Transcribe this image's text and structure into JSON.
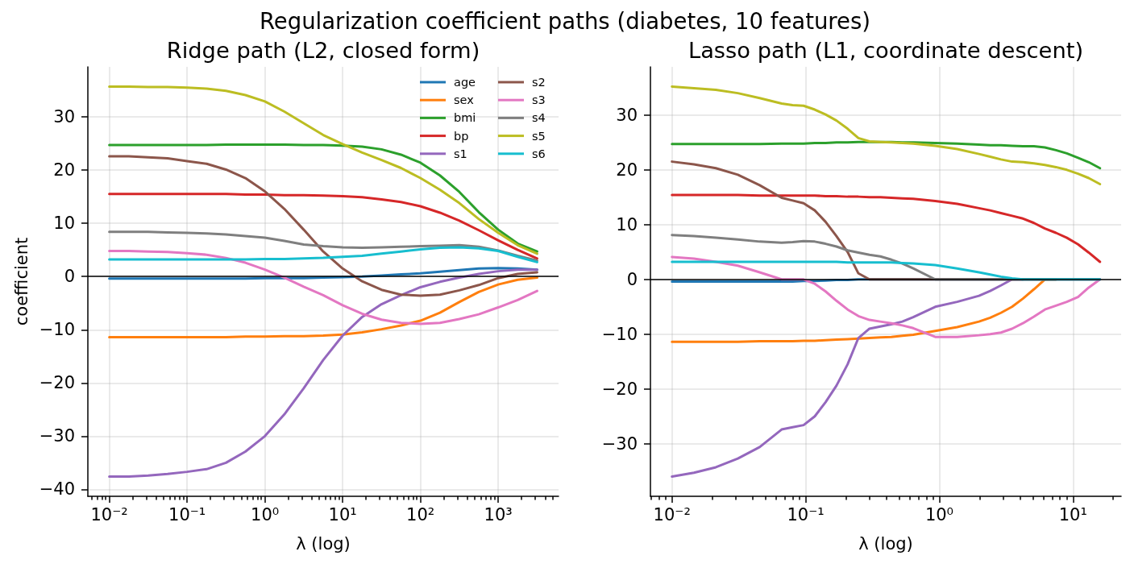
{
  "chart_data": [
    {
      "type": "line",
      "title": "Ridge path (L2, closed form)",
      "xlabel": "λ (log)",
      "ylabel": "coefficient",
      "annotations": [
        "Regularization coefficient paths (diabetes, 10 features)"
      ],
      "log": "x",
      "grid": true,
      "legend": "top right",
      "xlim": [
        0.0053,
        5960
      ],
      "ylim": [
        -41.3,
        39.4
      ],
      "xticks": [
        {
          "value": 0.006,
          "label": null
        },
        {
          "value": 0.007,
          "label": null
        },
        {
          "value": 0.008,
          "label": null
        },
        {
          "value": 0.009,
          "label": null
        },
        {
          "value": 0.01,
          "label": "10⁻²"
        },
        {
          "value": 0.02,
          "label": null
        },
        {
          "value": 0.03,
          "label": null
        },
        {
          "value": 0.04,
          "label": null
        },
        {
          "value": 0.05,
          "label": null
        },
        {
          "value": 0.06,
          "label": null
        },
        {
          "value": 0.07,
          "label": null
        },
        {
          "value": 0.08,
          "label": null
        },
        {
          "value": 0.09,
          "label": null
        },
        {
          "value": 0.1,
          "label": "10⁻¹"
        },
        {
          "value": 0.2,
          "label": null
        },
        {
          "value": 0.3,
          "label": null
        },
        {
          "value": 0.4,
          "label": null
        },
        {
          "value": 0.5,
          "label": null
        },
        {
          "value": 0.6,
          "label": null
        },
        {
          "value": 0.7,
          "label": null
        },
        {
          "value": 0.8,
          "label": null
        },
        {
          "value": 0.9,
          "label": null
        },
        {
          "value": 1,
          "label": "10⁰"
        },
        {
          "value": 2,
          "label": null
        },
        {
          "value": 3,
          "label": null
        },
        {
          "value": 4,
          "label": null
        },
        {
          "value": 5,
          "label": null
        },
        {
          "value": 6,
          "label": null
        },
        {
          "value": 7,
          "label": null
        },
        {
          "value": 8,
          "label": null
        },
        {
          "value": 9,
          "label": null
        },
        {
          "value": 10,
          "label": "10¹"
        },
        {
          "value": 20,
          "label": null
        },
        {
          "value": 30,
          "label": null
        },
        {
          "value": 40,
          "label": null
        },
        {
          "value": 50,
          "label": null
        },
        {
          "value": 60,
          "label": null
        },
        {
          "value": 70,
          "label": null
        },
        {
          "value": 80,
          "label": null
        },
        {
          "value": 90,
          "label": null
        },
        {
          "value": 100,
          "label": "10²"
        },
        {
          "value": 200,
          "label": null
        },
        {
          "value": 300,
          "label": null
        },
        {
          "value": 400,
          "label": null
        },
        {
          "value": 500,
          "label": null
        },
        {
          "value": 600,
          "label": null
        },
        {
          "value": 700,
          "label": null
        },
        {
          "value": 800,
          "label": null
        },
        {
          "value": 900,
          "label": null
        },
        {
          "value": 1000,
          "label": "10³"
        },
        {
          "value": 2000,
          "label": null
        },
        {
          "value": 3000,
          "label": null
        },
        {
          "value": 4000,
          "label": null
        },
        {
          "value": 5000,
          "label": null
        }
      ],
      "yticks": [
        -40,
        -30,
        -20,
        -10,
        0,
        10,
        20,
        30
      ],
      "ref_lines": [
        {
          "axis": "y",
          "value": 0,
          "color": "#000000"
        }
      ],
      "x": [
        0.01,
        0.0178,
        0.0316,
        0.0562,
        0.1,
        0.178,
        0.316,
        0.562,
        1,
        1.78,
        3.16,
        5.62,
        10,
        17.8,
        31.6,
        56.2,
        100,
        178,
        316,
        562,
        1000,
        1778,
        3162
      ],
      "series": [
        {
          "name": "age",
          "color": "#1f77b4",
          "values": [
            -0.4,
            -0.4,
            -0.4,
            -0.4,
            -0.4,
            -0.4,
            -0.4,
            -0.4,
            -0.3,
            -0.3,
            -0.3,
            -0.2,
            -0.1,
            0.0,
            0.2,
            0.4,
            0.6,
            0.9,
            1.2,
            1.5,
            1.6,
            1.5,
            1.3
          ]
        },
        {
          "name": "sex",
          "color": "#ff7f0e",
          "values": [
            -11.4,
            -11.4,
            -11.4,
            -11.4,
            -11.4,
            -11.4,
            -11.4,
            -11.3,
            -11.3,
            -11.2,
            -11.2,
            -11.1,
            -10.9,
            -10.5,
            -9.9,
            -9.2,
            -8.3,
            -6.8,
            -4.8,
            -2.9,
            -1.5,
            -0.6,
            -0.2
          ]
        },
        {
          "name": "bmi",
          "color": "#2ca02c",
          "values": [
            24.7,
            24.7,
            24.7,
            24.7,
            24.7,
            24.7,
            24.8,
            24.8,
            24.8,
            24.8,
            24.7,
            24.7,
            24.6,
            24.4,
            23.9,
            22.9,
            21.4,
            19.0,
            15.9,
            12.1,
            8.8,
            6.2,
            4.7
          ]
        },
        {
          "name": "bp",
          "color": "#d62728",
          "values": [
            15.5,
            15.5,
            15.5,
            15.5,
            15.5,
            15.5,
            15.5,
            15.4,
            15.4,
            15.3,
            15.3,
            15.2,
            15.1,
            14.9,
            14.5,
            14.0,
            13.2,
            12.0,
            10.5,
            8.7,
            6.8,
            5.0,
            3.4
          ]
        },
        {
          "name": "s1",
          "color": "#9467bd",
          "values": [
            -37.6,
            -37.6,
            -37.4,
            -37.1,
            -36.7,
            -36.2,
            -35.0,
            -32.9,
            -30.0,
            -25.9,
            -21.0,
            -15.7,
            -11.1,
            -7.6,
            -5.2,
            -3.5,
            -2.0,
            -1.0,
            -0.2,
            0.5,
            1.0,
            1.3,
            1.3
          ]
        },
        {
          "name": "s2",
          "color": "#8c564b",
          "values": [
            22.6,
            22.6,
            22.4,
            22.2,
            21.7,
            21.2,
            20.1,
            18.5,
            16.0,
            12.7,
            8.8,
            4.7,
            1.5,
            -0.9,
            -2.5,
            -3.4,
            -3.6,
            -3.4,
            -2.6,
            -1.6,
            -0.3,
            0.5,
            0.8
          ]
        },
        {
          "name": "s3",
          "color": "#e377c2",
          "values": [
            4.8,
            4.8,
            4.7,
            4.6,
            4.4,
            4.1,
            3.5,
            2.6,
            1.3,
            -0.2,
            -1.9,
            -3.5,
            -5.4,
            -7.0,
            -8.1,
            -8.7,
            -8.9,
            -8.7,
            -8.0,
            -7.1,
            -5.8,
            -4.4,
            -2.7
          ]
        },
        {
          "name": "s4",
          "color": "#7f7f7f",
          "values": [
            8.4,
            8.4,
            8.4,
            8.3,
            8.2,
            8.1,
            7.9,
            7.6,
            7.3,
            6.7,
            6.0,
            5.7,
            5.5,
            5.4,
            5.5,
            5.6,
            5.7,
            5.8,
            5.9,
            5.6,
            4.9,
            3.9,
            3.0
          ]
        },
        {
          "name": "s5",
          "color": "#bcbd22",
          "values": [
            35.7,
            35.7,
            35.6,
            35.6,
            35.5,
            35.3,
            34.9,
            34.1,
            32.9,
            31.0,
            28.8,
            26.6,
            24.9,
            23.3,
            21.9,
            20.4,
            18.5,
            16.3,
            13.8,
            10.8,
            8.2,
            5.9,
            4.3
          ]
        },
        {
          "name": "s6",
          "color": "#17becf",
          "values": [
            3.2,
            3.2,
            3.2,
            3.2,
            3.2,
            3.2,
            3.2,
            3.2,
            3.3,
            3.3,
            3.4,
            3.5,
            3.7,
            3.9,
            4.3,
            4.7,
            5.1,
            5.4,
            5.5,
            5.3,
            4.8,
            3.7,
            2.7
          ]
        }
      ]
    },
    {
      "type": "line",
      "title": "Lasso path (L1, coordinate descent)",
      "xlabel": "λ (log)",
      "log": "x",
      "grid": true,
      "xlim": [
        0.0069,
        22.9
      ],
      "ylim": [
        -39.6,
        38.8
      ],
      "xticks": [
        {
          "value": 0.007,
          "label": null
        },
        {
          "value": 0.008,
          "label": null
        },
        {
          "value": 0.009,
          "label": null
        },
        {
          "value": 0.01,
          "label": "10⁻²"
        },
        {
          "value": 0.02,
          "label": null
        },
        {
          "value": 0.03,
          "label": null
        },
        {
          "value": 0.04,
          "label": null
        },
        {
          "value": 0.05,
          "label": null
        },
        {
          "value": 0.06,
          "label": null
        },
        {
          "value": 0.07,
          "label": null
        },
        {
          "value": 0.08,
          "label": null
        },
        {
          "value": 0.09,
          "label": null
        },
        {
          "value": 0.1,
          "label": "10⁻¹"
        },
        {
          "value": 0.2,
          "label": null
        },
        {
          "value": 0.3,
          "label": null
        },
        {
          "value": 0.4,
          "label": null
        },
        {
          "value": 0.5,
          "label": null
        },
        {
          "value": 0.6,
          "label": null
        },
        {
          "value": 0.7,
          "label": null
        },
        {
          "value": 0.8,
          "label": null
        },
        {
          "value": 0.9,
          "label": null
        },
        {
          "value": 1,
          "label": "10⁰"
        },
        {
          "value": 2,
          "label": null
        },
        {
          "value": 3,
          "label": null
        },
        {
          "value": 4,
          "label": null
        },
        {
          "value": 5,
          "label": null
        },
        {
          "value": 6,
          "label": null
        },
        {
          "value": 7,
          "label": null
        },
        {
          "value": 8,
          "label": null
        },
        {
          "value": 9,
          "label": null
        },
        {
          "value": 10,
          "label": "10¹"
        },
        {
          "value": 20,
          "label": null
        }
      ],
      "yticks": [
        -30,
        -20,
        -10,
        0,
        10,
        20,
        30
      ],
      "ref_lines": [
        {
          "axis": "y",
          "value": 0,
          "color": "#000000"
        }
      ],
      "x": [
        0.01,
        0.0146,
        0.0213,
        0.0311,
        0.0453,
        0.0661,
        0.0799,
        0.0965,
        0.117,
        0.141,
        0.17,
        0.206,
        0.248,
        0.3,
        0.362,
        0.438,
        0.529,
        0.638,
        0.932,
        1.36,
        1.98,
        2.4,
        2.89,
        3.5,
        4.22,
        5.1,
        6.16,
        7.45,
        8.99,
        10.9,
        13.1,
        15.9
      ],
      "series": [
        {
          "color": "#1f77b4",
          "values": [
            -0.4,
            -0.4,
            -0.4,
            -0.4,
            -0.4,
            -0.4,
            -0.4,
            -0.3,
            -0.3,
            -0.2,
            -0.1,
            -0.1,
            0,
            0,
            0,
            0,
            0,
            0,
            0,
            0,
            0,
            0,
            0,
            0,
            0,
            null,
            null,
            null,
            null,
            null,
            null,
            null
          ]
        },
        {
          "color": "#ff7f0e",
          "values": [
            -11.4,
            -11.4,
            -11.4,
            -11.4,
            -11.3,
            -11.3,
            -11.3,
            -11.2,
            -11.2,
            -11.1,
            -11.0,
            -10.9,
            -10.8,
            -10.7,
            -10.6,
            -10.5,
            -10.3,
            -10.1,
            -9.4,
            -8.7,
            -7.7,
            -7.0,
            -6.1,
            -5.0,
            -3.5,
            -1.8,
            0,
            0,
            null,
            null,
            null,
            null
          ]
        },
        {
          "color": "#2ca02c",
          "values": [
            24.7,
            24.7,
            24.7,
            24.7,
            24.7,
            24.8,
            24.8,
            24.8,
            24.9,
            24.9,
            25.0,
            25.0,
            25.1,
            25.1,
            25.1,
            25.1,
            25.0,
            25.0,
            24.9,
            24.8,
            24.6,
            24.5,
            24.5,
            24.4,
            24.3,
            24.3,
            24.1,
            23.6,
            23.0,
            22.2,
            21.4,
            20.3
          ]
        },
        {
          "color": "#d62728",
          "values": [
            15.4,
            15.4,
            15.4,
            15.4,
            15.3,
            15.3,
            15.3,
            15.3,
            15.3,
            15.2,
            15.2,
            15.1,
            15.1,
            15.0,
            15.0,
            14.9,
            14.8,
            14.7,
            14.3,
            13.8,
            13.0,
            12.6,
            12.1,
            11.6,
            11.1,
            10.3,
            9.3,
            8.5,
            7.6,
            6.4,
            4.9,
            3.2
          ]
        },
        {
          "color": "#9467bd",
          "values": [
            -36.0,
            -35.3,
            -34.3,
            -32.7,
            -30.6,
            -27.4,
            -27.0,
            -26.6,
            -25.0,
            -22.4,
            -19.4,
            -15.5,
            -10.7,
            -9.0,
            -8.6,
            -8.2,
            -7.7,
            -6.9,
            -5.0,
            -4.1,
            -3.0,
            -2.1,
            -1.1,
            0,
            0,
            0,
            0,
            0,
            0,
            0,
            0,
            0
          ]
        },
        {
          "color": "#8c564b",
          "values": [
            21.5,
            21.0,
            20.3,
            19.1,
            17.2,
            14.9,
            14.4,
            13.9,
            12.6,
            10.5,
            7.9,
            5.0,
            1.1,
            0,
            0,
            0,
            0,
            0,
            0,
            0,
            0,
            0,
            0,
            0,
            0,
            0,
            0,
            0,
            null,
            null,
            null,
            null
          ]
        },
        {
          "color": "#e377c2",
          "values": [
            4.1,
            3.8,
            3.2,
            2.5,
            1.3,
            0,
            0,
            0,
            -0.8,
            -2.2,
            -3.9,
            -5.5,
            -6.7,
            -7.4,
            -7.7,
            -8.0,
            -8.4,
            -8.9,
            -10.5,
            -10.5,
            -10.2,
            -10.0,
            -9.7,
            -9.0,
            -8.0,
            -6.8,
            -5.5,
            -4.8,
            -4.1,
            -3.2,
            -1.5,
            0
          ]
        },
        {
          "color": "#7f7f7f",
          "values": [
            8.1,
            7.9,
            7.6,
            7.3,
            6.9,
            6.7,
            6.8,
            7.0,
            6.9,
            6.5,
            6.0,
            5.3,
            4.9,
            4.5,
            4.2,
            3.6,
            2.9,
            2.0,
            0,
            0,
            0,
            0,
            0,
            0,
            0,
            0,
            0,
            0,
            0,
            0,
            0,
            0
          ]
        },
        {
          "color": "#bcbd22",
          "values": [
            35.2,
            34.9,
            34.6,
            34.0,
            33.1,
            32.1,
            31.8,
            31.7,
            31.0,
            30.1,
            29.0,
            27.5,
            25.8,
            25.2,
            25.1,
            25.0,
            24.9,
            24.8,
            24.4,
            23.8,
            22.9,
            22.4,
            21.9,
            21.5,
            21.4,
            21.2,
            20.9,
            20.5,
            20.0,
            19.3,
            18.5,
            17.4
          ]
        },
        {
          "color": "#17becf",
          "values": [
            3.2,
            3.2,
            3.2,
            3.2,
            3.2,
            3.2,
            3.2,
            3.2,
            3.2,
            3.2,
            3.2,
            3.1,
            3.1,
            3.1,
            3.1,
            3.1,
            3.0,
            2.9,
            2.6,
            2.0,
            1.3,
            0.9,
            0.5,
            0.2,
            0,
            0,
            0,
            0,
            0,
            0,
            0,
            0
          ]
        }
      ]
    }
  ]
}
